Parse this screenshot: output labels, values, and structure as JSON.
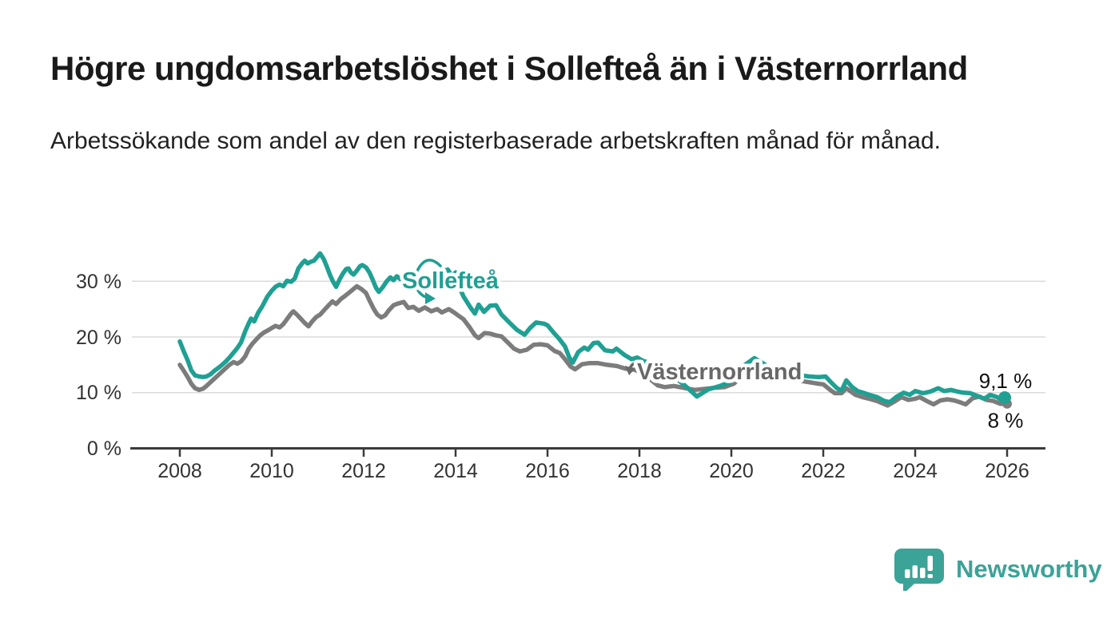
{
  "header": {
    "title": "Högre ungdomsarbetslöshet i Sollefteå än i Västernorrland",
    "subtitle": "Arbetssökande som andel av den registerbaserade arbetskraften månad för månad."
  },
  "chart_data": {
    "type": "line",
    "x_axis": {
      "ticks": [
        "2008",
        "2010",
        "2012",
        "2014",
        "2016",
        "2018",
        "2020",
        "2022",
        "2024",
        "2026"
      ],
      "range": [
        2007.0,
        2026.9
      ],
      "grid": false
    },
    "y_axis": {
      "ticks": [
        "0 %",
        "10 %",
        "20 %",
        "30 %"
      ],
      "unit": "%",
      "range": [
        0,
        36
      ],
      "gridlines": [
        10,
        20,
        30
      ]
    },
    "legend_position": "inline-labels-on-lines",
    "series": [
      {
        "name": "Västernorrland",
        "color": "#7c7c7c",
        "label_color": "#686868",
        "end_label": "8 %",
        "end_value": 8.0,
        "points": [
          [
            2008.0,
            15.0
          ],
          [
            2008.08,
            14.0
          ],
          [
            2008.17,
            12.8
          ],
          [
            2008.25,
            11.6
          ],
          [
            2008.33,
            10.8
          ],
          [
            2008.42,
            10.5
          ],
          [
            2008.5,
            10.7
          ],
          [
            2008.58,
            11.2
          ],
          [
            2008.67,
            11.9
          ],
          [
            2008.75,
            12.5
          ],
          [
            2008.83,
            13.1
          ],
          [
            2008.92,
            13.8
          ],
          [
            2009.0,
            14.4
          ],
          [
            2009.08,
            15.0
          ],
          [
            2009.17,
            15.5
          ],
          [
            2009.25,
            15.2
          ],
          [
            2009.33,
            15.6
          ],
          [
            2009.42,
            16.5
          ],
          [
            2009.5,
            17.9
          ],
          [
            2009.58,
            18.8
          ],
          [
            2009.67,
            19.6
          ],
          [
            2009.75,
            20.3
          ],
          [
            2009.83,
            20.8
          ],
          [
            2009.92,
            21.2
          ],
          [
            2010.0,
            21.6
          ],
          [
            2010.08,
            22.0
          ],
          [
            2010.17,
            21.7
          ],
          [
            2010.25,
            22.3
          ],
          [
            2010.33,
            23.2
          ],
          [
            2010.42,
            24.2
          ],
          [
            2010.47,
            24.6
          ],
          [
            2010.55,
            24.0
          ],
          [
            2010.63,
            23.3
          ],
          [
            2010.72,
            22.5
          ],
          [
            2010.8,
            21.9
          ],
          [
            2010.88,
            22.8
          ],
          [
            2010.97,
            23.6
          ],
          [
            2011.05,
            24.0
          ],
          [
            2011.15,
            24.9
          ],
          [
            2011.25,
            25.8
          ],
          [
            2011.32,
            26.4
          ],
          [
            2011.4,
            25.9
          ],
          [
            2011.5,
            26.8
          ],
          [
            2011.6,
            27.4
          ],
          [
            2011.72,
            28.2
          ],
          [
            2011.85,
            29.1
          ],
          [
            2011.95,
            28.6
          ],
          [
            2012.05,
            27.9
          ],
          [
            2012.13,
            26.5
          ],
          [
            2012.22,
            25.0
          ],
          [
            2012.3,
            24.0
          ],
          [
            2012.38,
            23.5
          ],
          [
            2012.47,
            23.9
          ],
          [
            2012.55,
            24.8
          ],
          [
            2012.65,
            25.7
          ],
          [
            2012.75,
            26.0
          ],
          [
            2012.87,
            26.3
          ],
          [
            2012.97,
            25.2
          ],
          [
            2013.08,
            25.4
          ],
          [
            2013.2,
            24.7
          ],
          [
            2013.33,
            25.3
          ],
          [
            2013.47,
            24.6
          ],
          [
            2013.6,
            25.0
          ],
          [
            2013.7,
            24.4
          ],
          [
            2013.85,
            25.0
          ],
          [
            2013.95,
            24.5
          ],
          [
            2014.05,
            23.9
          ],
          [
            2014.17,
            23.2
          ],
          [
            2014.3,
            21.8
          ],
          [
            2014.42,
            20.3
          ],
          [
            2014.5,
            19.8
          ],
          [
            2014.63,
            20.7
          ],
          [
            2014.75,
            20.6
          ],
          [
            2014.87,
            20.3
          ],
          [
            2015.0,
            20.1
          ],
          [
            2015.15,
            18.9
          ],
          [
            2015.27,
            17.9
          ],
          [
            2015.4,
            17.4
          ],
          [
            2015.55,
            17.7
          ],
          [
            2015.7,
            18.6
          ],
          [
            2015.85,
            18.7
          ],
          [
            2016.0,
            18.5
          ],
          [
            2016.15,
            17.5
          ],
          [
            2016.27,
            17.1
          ],
          [
            2016.4,
            15.8
          ],
          [
            2016.5,
            14.7
          ],
          [
            2016.6,
            14.2
          ],
          [
            2016.75,
            15.1
          ],
          [
            2016.9,
            15.3
          ],
          [
            2017.1,
            15.3
          ],
          [
            2017.3,
            15.0
          ],
          [
            2017.5,
            14.8
          ],
          [
            2017.7,
            14.3
          ],
          [
            2017.9,
            14.1
          ],
          [
            2018.1,
            13.4
          ],
          [
            2018.25,
            12.3
          ],
          [
            2018.4,
            11.3
          ],
          [
            2018.55,
            11.0
          ],
          [
            2018.75,
            11.2
          ],
          [
            2018.95,
            10.9
          ],
          [
            2019.2,
            10.5
          ],
          [
            2019.45,
            10.7
          ],
          [
            2019.65,
            10.9
          ],
          [
            2019.85,
            11.0
          ],
          [
            2020.05,
            11.6
          ],
          [
            2020.3,
            13.5
          ],
          [
            2020.5,
            14.5
          ],
          [
            2020.75,
            13.9
          ],
          [
            2021.0,
            13.2
          ],
          [
            2021.3,
            12.5
          ],
          [
            2021.6,
            12.0
          ],
          [
            2021.9,
            11.6
          ],
          [
            2022.0,
            11.5
          ],
          [
            2022.15,
            10.5
          ],
          [
            2022.25,
            9.9
          ],
          [
            2022.4,
            9.9
          ],
          [
            2022.5,
            10.8
          ],
          [
            2022.7,
            9.6
          ],
          [
            2022.85,
            9.2
          ],
          [
            2023.0,
            8.9
          ],
          [
            2023.17,
            8.5
          ],
          [
            2023.4,
            7.7
          ],
          [
            2023.55,
            8.4
          ],
          [
            2023.7,
            9.2
          ],
          [
            2023.85,
            8.7
          ],
          [
            2024.0,
            8.9
          ],
          [
            2024.1,
            9.2
          ],
          [
            2024.25,
            8.5
          ],
          [
            2024.4,
            7.9
          ],
          [
            2024.55,
            8.6
          ],
          [
            2024.7,
            8.8
          ],
          [
            2024.85,
            8.6
          ],
          [
            2025.0,
            8.2
          ],
          [
            2025.1,
            7.9
          ],
          [
            2025.25,
            9.0
          ],
          [
            2025.4,
            9.3
          ],
          [
            2025.55,
            8.7
          ],
          [
            2025.7,
            8.5
          ],
          [
            2025.85,
            8.0
          ],
          [
            2026.0,
            8.0
          ]
        ]
      },
      {
        "name": "Sollefteå",
        "color": "#1fa093",
        "label_color": "#1fa093",
        "end_label": "9,1 %",
        "end_value": 9.1,
        "points": [
          [
            2008.0,
            19.2
          ],
          [
            2008.08,
            17.5
          ],
          [
            2008.17,
            15.8
          ],
          [
            2008.25,
            14.0
          ],
          [
            2008.33,
            13.1
          ],
          [
            2008.42,
            12.9
          ],
          [
            2008.5,
            12.8
          ],
          [
            2008.58,
            12.9
          ],
          [
            2008.67,
            13.3
          ],
          [
            2008.75,
            13.9
          ],
          [
            2008.83,
            14.4
          ],
          [
            2008.92,
            15.0
          ],
          [
            2009.0,
            15.6
          ],
          [
            2009.08,
            16.3
          ],
          [
            2009.17,
            17.2
          ],
          [
            2009.25,
            18.0
          ],
          [
            2009.33,
            19.0
          ],
          [
            2009.42,
            21.0
          ],
          [
            2009.5,
            22.5
          ],
          [
            2009.55,
            23.3
          ],
          [
            2009.62,
            22.8
          ],
          [
            2009.7,
            24.3
          ],
          [
            2009.8,
            25.6
          ],
          [
            2009.9,
            27.2
          ],
          [
            2010.0,
            28.3
          ],
          [
            2010.08,
            29.0
          ],
          [
            2010.17,
            29.4
          ],
          [
            2010.25,
            29.1
          ],
          [
            2010.33,
            30.1
          ],
          [
            2010.42,
            29.9
          ],
          [
            2010.5,
            30.5
          ],
          [
            2010.58,
            32.3
          ],
          [
            2010.67,
            33.3
          ],
          [
            2010.72,
            33.7
          ],
          [
            2010.78,
            33.2
          ],
          [
            2010.85,
            33.5
          ],
          [
            2010.92,
            33.7
          ],
          [
            2011.0,
            34.5
          ],
          [
            2011.05,
            35.0
          ],
          [
            2011.13,
            34.0
          ],
          [
            2011.2,
            32.6
          ],
          [
            2011.27,
            31.1
          ],
          [
            2011.33,
            30.0
          ],
          [
            2011.4,
            29.0
          ],
          [
            2011.48,
            30.4
          ],
          [
            2011.55,
            31.4
          ],
          [
            2011.62,
            32.2
          ],
          [
            2011.67,
            32.3
          ],
          [
            2011.72,
            31.6
          ],
          [
            2011.78,
            31.2
          ],
          [
            2011.85,
            31.9
          ],
          [
            2011.92,
            32.7
          ],
          [
            2011.97,
            32.9
          ],
          [
            2012.05,
            32.5
          ],
          [
            2012.13,
            31.5
          ],
          [
            2012.2,
            30.2
          ],
          [
            2012.27,
            28.8
          ],
          [
            2012.33,
            28.1
          ],
          [
            2012.42,
            29.0
          ],
          [
            2012.5,
            30.0
          ],
          [
            2012.58,
            30.7
          ],
          [
            2012.65,
            30.2
          ],
          [
            2012.72,
            30.9
          ],
          [
            2012.8,
            30.4
          ],
          [
            2012.88,
            30.9
          ],
          [
            2012.97,
            30.5
          ],
          [
            2013.08,
            29.9
          ],
          [
            2013.25,
            29.3
          ],
          [
            2013.42,
            30.1
          ],
          [
            2013.58,
            31.0
          ],
          [
            2013.72,
            31.8
          ],
          [
            2013.83,
            32.1
          ],
          [
            2013.92,
            30.9
          ],
          [
            2014.0,
            31.6
          ],
          [
            2014.08,
            29.0
          ],
          [
            2014.17,
            27.3
          ],
          [
            2014.33,
            25.2
          ],
          [
            2014.42,
            24.2
          ],
          [
            2014.5,
            25.8
          ],
          [
            2014.62,
            24.5
          ],
          [
            2014.75,
            25.6
          ],
          [
            2014.88,
            25.7
          ],
          [
            2015.0,
            24.0
          ],
          [
            2015.17,
            22.6
          ],
          [
            2015.33,
            21.3
          ],
          [
            2015.5,
            20.4
          ],
          [
            2015.62,
            21.6
          ],
          [
            2015.75,
            22.6
          ],
          [
            2015.92,
            22.4
          ],
          [
            2016.0,
            22.1
          ],
          [
            2016.13,
            20.8
          ],
          [
            2016.25,
            19.7
          ],
          [
            2016.38,
            18.3
          ],
          [
            2016.47,
            16.4
          ],
          [
            2016.55,
            15.4
          ],
          [
            2016.67,
            17.3
          ],
          [
            2016.8,
            18.1
          ],
          [
            2016.88,
            17.7
          ],
          [
            2017.0,
            18.9
          ],
          [
            2017.1,
            19.0
          ],
          [
            2017.25,
            17.6
          ],
          [
            2017.42,
            17.4
          ],
          [
            2017.5,
            17.9
          ],
          [
            2017.67,
            16.8
          ],
          [
            2017.83,
            16.0
          ],
          [
            2017.95,
            16.3
          ],
          [
            2018.08,
            15.7
          ],
          [
            2018.2,
            15.4
          ],
          [
            2018.4,
            14.3
          ],
          [
            2018.6,
            13.4
          ],
          [
            2018.8,
            12.6
          ],
          [
            2019.0,
            11.2
          ],
          [
            2019.25,
            9.3
          ],
          [
            2019.5,
            10.6
          ],
          [
            2019.75,
            11.2
          ],
          [
            2020.0,
            12.0
          ],
          [
            2020.3,
            15.0
          ],
          [
            2020.5,
            16.2
          ],
          [
            2020.7,
            15.2
          ],
          [
            2020.9,
            14.2
          ],
          [
            2021.1,
            13.8
          ],
          [
            2021.4,
            13.2
          ],
          [
            2021.7,
            12.9
          ],
          [
            2021.9,
            12.8
          ],
          [
            2022.05,
            12.9
          ],
          [
            2022.2,
            11.6
          ],
          [
            2022.3,
            10.8
          ],
          [
            2022.4,
            10.4
          ],
          [
            2022.5,
            12.2
          ],
          [
            2022.63,
            11.0
          ],
          [
            2022.75,
            10.3
          ],
          [
            2022.9,
            9.9
          ],
          [
            2023.0,
            9.6
          ],
          [
            2023.17,
            9.2
          ],
          [
            2023.33,
            8.5
          ],
          [
            2023.45,
            8.3
          ],
          [
            2023.6,
            9.3
          ],
          [
            2023.75,
            10.0
          ],
          [
            2023.88,
            9.6
          ],
          [
            2024.0,
            10.3
          ],
          [
            2024.17,
            9.9
          ],
          [
            2024.33,
            10.2
          ],
          [
            2024.5,
            10.8
          ],
          [
            2024.63,
            10.3
          ],
          [
            2024.78,
            10.5
          ],
          [
            2024.92,
            10.2
          ],
          [
            2025.05,
            10.0
          ],
          [
            2025.2,
            9.9
          ],
          [
            2025.38,
            9.3
          ],
          [
            2025.5,
            8.9
          ],
          [
            2025.63,
            9.6
          ],
          [
            2025.78,
            9.2
          ],
          [
            2025.88,
            8.7
          ],
          [
            2026.0,
            9.1
          ]
        ]
      }
    ]
  },
  "footer": {
    "brand": "Newsworthy",
    "brand_color": "#3ba397"
  }
}
